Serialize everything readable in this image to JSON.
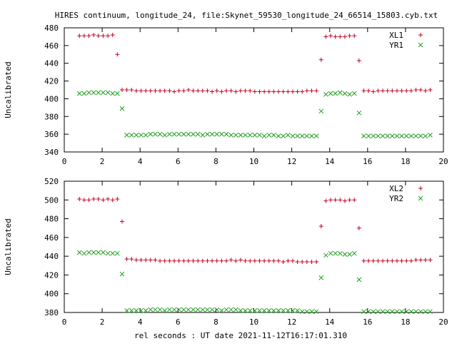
{
  "title": "HIRES continuum, longitude_24, file:Skynet_59530_longitude_24_66514_15803.cyb.txt",
  "xlabel": "rel seconds : UT date 2021-11-12T16:17:01.310",
  "colors": {
    "plus": "#c00020",
    "cross": "#20a020"
  },
  "chart_data": [
    {
      "type": "scatter",
      "ylabel": "Uncalibrated",
      "xlim": [
        0,
        20
      ],
      "ylim": [
        340,
        480
      ],
      "xticks": [
        "0",
        "2",
        "4",
        "6",
        "8",
        "10",
        "12",
        "14",
        "16",
        "18",
        "20"
      ],
      "yticks": [
        "340",
        "360",
        "380",
        "400",
        "420",
        "440",
        "460",
        "480"
      ],
      "legend_position": "top-right",
      "series": [
        {
          "name": "XL1",
          "marker": "plus",
          "x": [
            0.8,
            1.05,
            1.3,
            1.55,
            1.8,
            2.05,
            2.3,
            2.55,
            2.8,
            3.05,
            3.3,
            3.55,
            3.8,
            4.05,
            4.3,
            4.55,
            4.8,
            5.05,
            5.3,
            5.55,
            5.8,
            6.05,
            6.3,
            6.55,
            6.8,
            7.05,
            7.3,
            7.55,
            7.8,
            8.05,
            8.3,
            8.55,
            8.8,
            9.05,
            9.3,
            9.55,
            9.8,
            10.05,
            10.3,
            10.55,
            10.8,
            11.05,
            11.3,
            11.55,
            11.8,
            12.05,
            12.3,
            12.55,
            12.8,
            13.05,
            13.3,
            13.55,
            13.8,
            14.05,
            14.3,
            14.55,
            14.8,
            15.05,
            15.3,
            15.55,
            15.8,
            16.05,
            16.3,
            16.55,
            16.8,
            17.05,
            17.3,
            17.55,
            17.8,
            18.05,
            18.3,
            18.55,
            18.8,
            19.05,
            19.3
          ],
          "y": [
            471,
            471,
            471,
            472,
            471,
            471,
            471,
            472,
            450,
            410,
            410,
            410,
            409,
            409,
            409,
            409,
            409,
            409,
            409,
            409,
            408,
            409,
            409,
            410,
            409,
            409,
            409,
            409,
            408,
            409,
            408,
            409,
            409,
            408,
            409,
            409,
            409,
            408,
            408,
            408,
            408,
            408,
            408,
            408,
            408,
            408,
            408,
            408,
            409,
            409,
            409,
            444,
            470,
            471,
            470,
            470,
            470,
            471,
            471,
            443,
            409,
            409,
            408,
            409,
            409,
            409,
            409,
            409,
            409,
            409,
            409,
            410,
            410,
            409,
            410
          ]
        },
        {
          "name": "YR1",
          "marker": "cross",
          "x": [
            0.8,
            1.05,
            1.3,
            1.55,
            1.8,
            2.05,
            2.3,
            2.55,
            2.8,
            3.05,
            3.3,
            3.55,
            3.8,
            4.05,
            4.3,
            4.55,
            4.8,
            5.05,
            5.3,
            5.55,
            5.8,
            6.05,
            6.3,
            6.55,
            6.8,
            7.05,
            7.3,
            7.55,
            7.8,
            8.05,
            8.3,
            8.55,
            8.8,
            9.05,
            9.3,
            9.55,
            9.8,
            10.05,
            10.3,
            10.55,
            10.8,
            11.05,
            11.3,
            11.55,
            11.8,
            12.05,
            12.3,
            12.55,
            12.8,
            13.05,
            13.3,
            13.55,
            13.8,
            14.05,
            14.3,
            14.55,
            14.8,
            15.05,
            15.3,
            15.55,
            15.8,
            16.05,
            16.3,
            16.55,
            16.8,
            17.05,
            17.3,
            17.55,
            17.8,
            18.05,
            18.3,
            18.55,
            18.8,
            19.05,
            19.3
          ],
          "y": [
            406,
            406,
            407,
            407,
            407,
            407,
            407,
            406,
            406,
            389,
            359,
            359,
            359,
            359,
            359,
            360,
            360,
            360,
            359,
            360,
            360,
            360,
            360,
            360,
            360,
            360,
            359,
            360,
            360,
            360,
            360,
            360,
            359,
            359,
            359,
            359,
            359,
            359,
            359,
            358,
            359,
            359,
            358,
            358,
            359,
            358,
            358,
            358,
            358,
            358,
            358,
            386,
            405,
            406,
            406,
            407,
            406,
            405,
            406,
            384,
            358,
            358,
            358,
            358,
            358,
            358,
            358,
            358,
            358,
            358,
            358,
            358,
            358,
            358,
            359
          ]
        }
      ]
    },
    {
      "type": "scatter",
      "ylabel": "Uncalibrated",
      "xlim": [
        0,
        20
      ],
      "ylim": [
        380,
        520
      ],
      "xticks": [
        "0",
        "2",
        "4",
        "6",
        "8",
        "10",
        "12",
        "14",
        "16",
        "18",
        "20"
      ],
      "yticks": [
        "380",
        "400",
        "420",
        "440",
        "460",
        "480",
        "500",
        "520"
      ],
      "legend_position": "top-right",
      "series": [
        {
          "name": "XL2",
          "marker": "plus",
          "x": [
            0.8,
            1.05,
            1.3,
            1.55,
            1.8,
            2.05,
            2.3,
            2.55,
            2.8,
            3.05,
            3.3,
            3.55,
            3.8,
            4.05,
            4.3,
            4.55,
            4.8,
            5.05,
            5.3,
            5.55,
            5.8,
            6.05,
            6.3,
            6.55,
            6.8,
            7.05,
            7.3,
            7.55,
            7.8,
            8.05,
            8.3,
            8.55,
            8.8,
            9.05,
            9.3,
            9.55,
            9.8,
            10.05,
            10.3,
            10.55,
            10.8,
            11.05,
            11.3,
            11.55,
            11.8,
            12.05,
            12.3,
            12.55,
            12.8,
            13.05,
            13.3,
            13.55,
            13.8,
            14.05,
            14.3,
            14.55,
            14.8,
            15.05,
            15.3,
            15.55,
            15.8,
            16.05,
            16.3,
            16.55,
            16.8,
            17.05,
            17.3,
            17.55,
            17.8,
            18.05,
            18.3,
            18.55,
            18.8,
            19.05,
            19.3
          ],
          "y": [
            501,
            500,
            500,
            501,
            501,
            500,
            501,
            500,
            501,
            477,
            437,
            437,
            436,
            436,
            436,
            436,
            436,
            435,
            435,
            435,
            435,
            435,
            435,
            435,
            435,
            435,
            435,
            435,
            435,
            435,
            435,
            435,
            436,
            435,
            436,
            435,
            435,
            435,
            435,
            435,
            435,
            435,
            435,
            434,
            435,
            435,
            434,
            434,
            434,
            434,
            434,
            472,
            499,
            500,
            500,
            500,
            499,
            500,
            500,
            470,
            435,
            435,
            435,
            435,
            435,
            435,
            435,
            435,
            435,
            435,
            435,
            436,
            436,
            436,
            436
          ]
        },
        {
          "name": "YR2",
          "marker": "cross",
          "x": [
            0.8,
            1.05,
            1.3,
            1.55,
            1.8,
            2.05,
            2.3,
            2.55,
            2.8,
            3.05,
            3.3,
            3.55,
            3.8,
            4.05,
            4.3,
            4.55,
            4.8,
            5.05,
            5.3,
            5.55,
            5.8,
            6.05,
            6.3,
            6.55,
            6.8,
            7.05,
            7.3,
            7.55,
            7.8,
            8.05,
            8.3,
            8.55,
            8.8,
            9.05,
            9.3,
            9.55,
            9.8,
            10.05,
            10.3,
            10.55,
            10.8,
            11.05,
            11.3,
            11.55,
            11.8,
            12.05,
            12.3,
            12.55,
            12.8,
            13.05,
            13.3,
            13.55,
            13.8,
            14.05,
            14.3,
            14.55,
            14.8,
            15.05,
            15.3,
            15.55,
            15.8,
            16.05,
            16.3,
            16.55,
            16.8,
            17.05,
            17.3,
            17.55,
            17.8,
            18.05,
            18.3,
            18.55,
            18.8,
            19.05,
            19.3
          ],
          "y": [
            444,
            443,
            444,
            444,
            444,
            444,
            443,
            443,
            443,
            421,
            382,
            382,
            382,
            382,
            382,
            383,
            383,
            383,
            382,
            383,
            383,
            383,
            383,
            383,
            383,
            383,
            383,
            383,
            383,
            383,
            382,
            383,
            383,
            383,
            382,
            382,
            382,
            382,
            382,
            382,
            382,
            382,
            382,
            382,
            382,
            382,
            382,
            381,
            381,
            381,
            381,
            417,
            441,
            443,
            443,
            443,
            442,
            442,
            443,
            415,
            381,
            381,
            381,
            381,
            381,
            381,
            381,
            381,
            381,
            381,
            381,
            381,
            381,
            381,
            381
          ]
        }
      ]
    }
  ]
}
